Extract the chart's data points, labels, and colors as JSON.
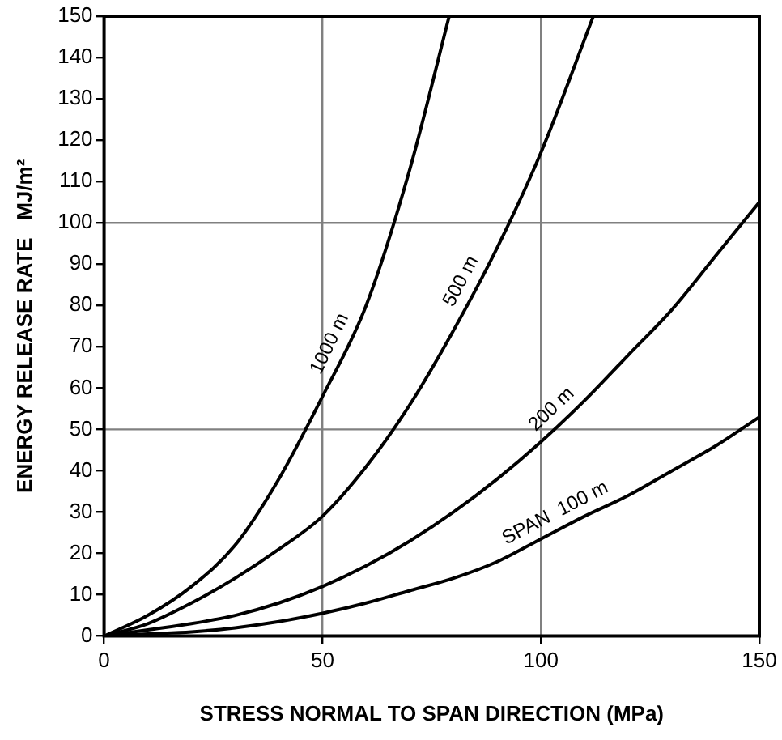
{
  "chart_data": {
    "type": "line",
    "xlabel": "STRESS NORMAL TO SPAN DIRECTION (MPa)",
    "ylabel": "ENERGY RELEASE RATE   MJ/m²",
    "xlim": [
      0,
      150
    ],
    "xticks": [
      0,
      50,
      100,
      150
    ],
    "ylim": [
      0,
      150
    ],
    "yticks": [
      0,
      10,
      20,
      30,
      40,
      50,
      60,
      70,
      80,
      90,
      100,
      110,
      120,
      130,
      140,
      150
    ],
    "grid": "x",
    "legend": false,
    "marker": "none",
    "line_style": "solid",
    "ref_lines": [
      {
        "axis": "y",
        "value": 50,
        "color": "#808080"
      },
      {
        "axis": "y",
        "value": 100,
        "color": "#808080"
      }
    ],
    "series": [
      {
        "name": "1000 m",
        "color": "#000000",
        "x": [
          0,
          10,
          20,
          30,
          40,
          50,
          60,
          70,
          79
        ],
        "values": [
          0,
          5,
          12,
          22,
          38,
          58,
          80,
          113,
          150
        ]
      },
      {
        "name": "500 m",
        "color": "#000000",
        "x": [
          0,
          10,
          20,
          30,
          40,
          50,
          60,
          70,
          80,
          90,
          100,
          112
        ],
        "values": [
          0,
          3,
          8,
          14,
          21,
          29,
          41,
          56,
          74,
          94,
          117,
          150
        ]
      },
      {
        "name": "200 m",
        "color": "#000000",
        "x": [
          0,
          10,
          20,
          30,
          40,
          50,
          60,
          70,
          80,
          90,
          100,
          110,
          120,
          130,
          140,
          150
        ],
        "values": [
          0,
          1.5,
          3,
          5,
          8,
          12,
          17,
          23,
          30,
          38,
          47,
          57,
          68,
          79,
          92,
          105
        ]
      },
      {
        "name": "SPAN  100 m",
        "color": "#000000",
        "x": [
          0,
          10,
          20,
          30,
          40,
          50,
          60,
          70,
          80,
          90,
          100,
          110,
          120,
          130,
          140,
          150
        ],
        "values": [
          0,
          0.5,
          1,
          2,
          3.5,
          5.5,
          8,
          11,
          14,
          18,
          23.5,
          29,
          34,
          40,
          46,
          53
        ]
      }
    ]
  }
}
